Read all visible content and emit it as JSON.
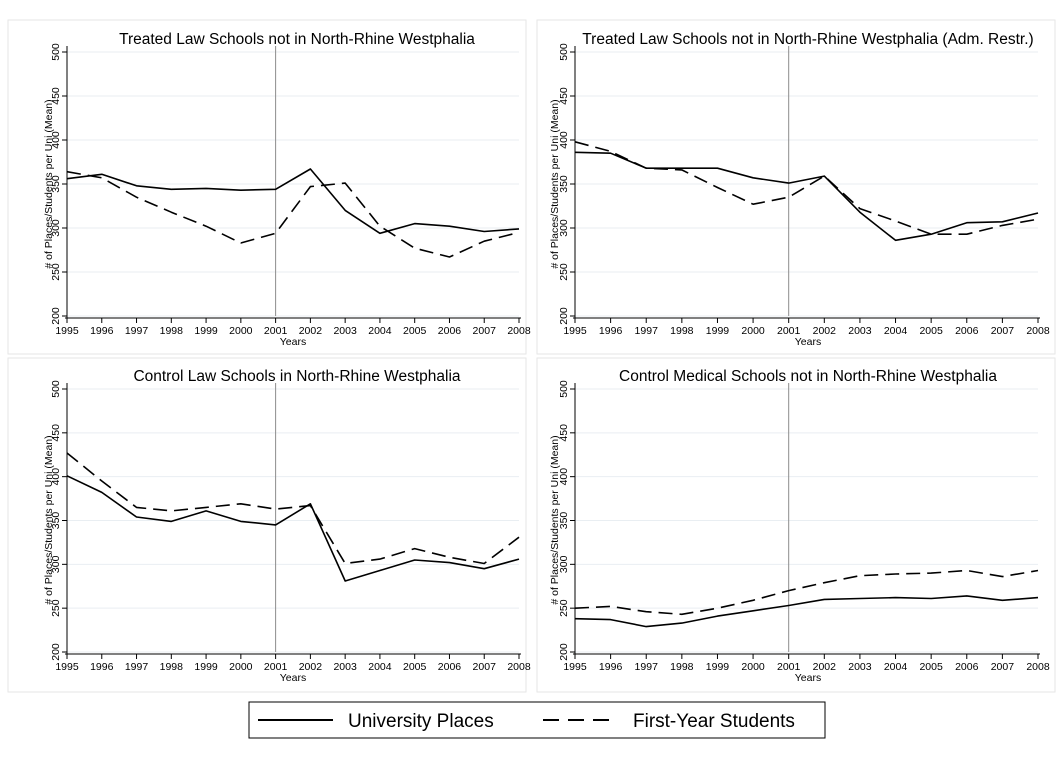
{
  "legend": {
    "entries": [
      {
        "label": "University Places",
        "style": "solid"
      },
      {
        "label": "First-Year Students",
        "style": "dashed"
      }
    ]
  },
  "chart_data": [
    {
      "type": "line",
      "title": "Treated Law Schools not in North-Rhine Westphalia",
      "xlabel": "Years",
      "ylabel": "# of Places/Students per Uni (Mean)",
      "ylim": [
        200,
        500
      ],
      "yticks": [
        200,
        250,
        300,
        350,
        400,
        450,
        500
      ],
      "xlim": [
        1995,
        2008
      ],
      "x": [
        1995,
        1996,
        1997,
        1998,
        1999,
        2000,
        2001,
        2002,
        2003,
        2004,
        2005,
        2006,
        2007,
        2008
      ],
      "vline": 2001,
      "grid": true,
      "series": [
        {
          "name": "University Places",
          "style": "solid",
          "values": [
            356,
            361,
            348,
            344,
            345,
            343,
            344,
            367,
            320,
            294,
            305,
            302,
            296,
            299
          ]
        },
        {
          "name": "First-Year Students",
          "style": "dashed",
          "values": [
            364,
            357,
            335,
            318,
            302,
            283,
            294,
            347,
            351,
            302,
            277,
            267,
            285,
            295
          ]
        }
      ]
    },
    {
      "type": "line",
      "title": "Treated Law Schools not in North-Rhine Westphalia (Adm. Restr.)",
      "xlabel": "Years",
      "ylabel": "# of Places/Students per Uni (Mean)",
      "ylim": [
        200,
        500
      ],
      "yticks": [
        200,
        250,
        300,
        350,
        400,
        450,
        500
      ],
      "xlim": [
        1995,
        2008
      ],
      "x": [
        1995,
        1996,
        1997,
        1998,
        1999,
        2000,
        2001,
        2002,
        2003,
        2004,
        2005,
        2006,
        2007,
        2008
      ],
      "vline": 2001,
      "grid": true,
      "series": [
        {
          "name": "University Places",
          "style": "solid",
          "values": [
            386,
            385,
            368,
            368,
            368,
            357,
            351,
            359,
            318,
            286,
            293,
            306,
            307,
            317
          ]
        },
        {
          "name": "First-Year Students",
          "style": "dashed",
          "values": [
            398,
            387,
            368,
            366,
            346,
            327,
            335,
            359,
            322,
            308,
            293,
            293,
            303,
            310
          ]
        }
      ]
    },
    {
      "type": "line",
      "title": "Control Law Schools in North-Rhine Westphalia",
      "xlabel": "Years",
      "ylabel": "# of Places/Students per Uni (Mean)",
      "ylim": [
        200,
        500
      ],
      "yticks": [
        200,
        250,
        300,
        350,
        400,
        450,
        500
      ],
      "xlim": [
        1995,
        2008
      ],
      "x": [
        1995,
        1996,
        1997,
        1998,
        1999,
        2000,
        2001,
        2002,
        2003,
        2004,
        2005,
        2006,
        2007,
        2008
      ],
      "vline": 2001,
      "grid": true,
      "series": [
        {
          "name": "University Places",
          "style": "solid",
          "values": [
            401,
            382,
            354,
            349,
            361,
            349,
            345,
            369,
            281,
            293,
            305,
            302,
            295,
            306
          ]
        },
        {
          "name": "First-Year Students",
          "style": "dashed",
          "values": [
            427,
            395,
            365,
            361,
            365,
            369,
            363,
            367,
            301,
            306,
            318,
            308,
            301,
            331
          ]
        }
      ]
    },
    {
      "type": "line",
      "title": "Control Medical Schools not in North-Rhine Westphalia",
      "xlabel": "Years",
      "ylabel": "# of Places/Students per Uni (Mean)",
      "ylim": [
        200,
        500
      ],
      "yticks": [
        200,
        250,
        300,
        350,
        400,
        450,
        500
      ],
      "xlim": [
        1995,
        2008
      ],
      "x": [
        1995,
        1996,
        1997,
        1998,
        1999,
        2000,
        2001,
        2002,
        2003,
        2004,
        2005,
        2006,
        2007,
        2008
      ],
      "vline": 2001,
      "grid": true,
      "series": [
        {
          "name": "University Places",
          "style": "solid",
          "values": [
            238,
            237,
            229,
            233,
            241,
            247,
            253,
            260,
            261,
            262,
            261,
            264,
            259,
            262
          ]
        },
        {
          "name": "First-Year Students",
          "style": "dashed",
          "values": [
            250,
            252,
            246,
            243,
            250,
            259,
            270,
            279,
            287,
            289,
            290,
            293,
            286,
            293
          ]
        }
      ]
    }
  ]
}
